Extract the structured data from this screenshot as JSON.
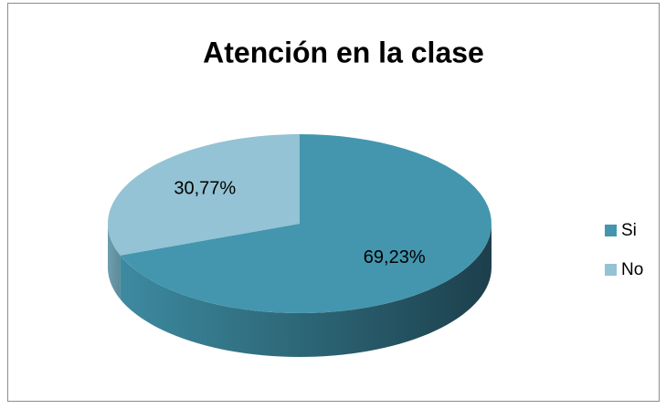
{
  "chart_data": {
    "type": "pie",
    "title": "Atención en la clase",
    "categories": [
      "Si",
      "No"
    ],
    "values": [
      69.23,
      30.77
    ],
    "value_labels": [
      "69,23%",
      "30,77%"
    ],
    "colors": [
      "#4396ae",
      "#93c3d4"
    ],
    "legend": "right"
  }
}
